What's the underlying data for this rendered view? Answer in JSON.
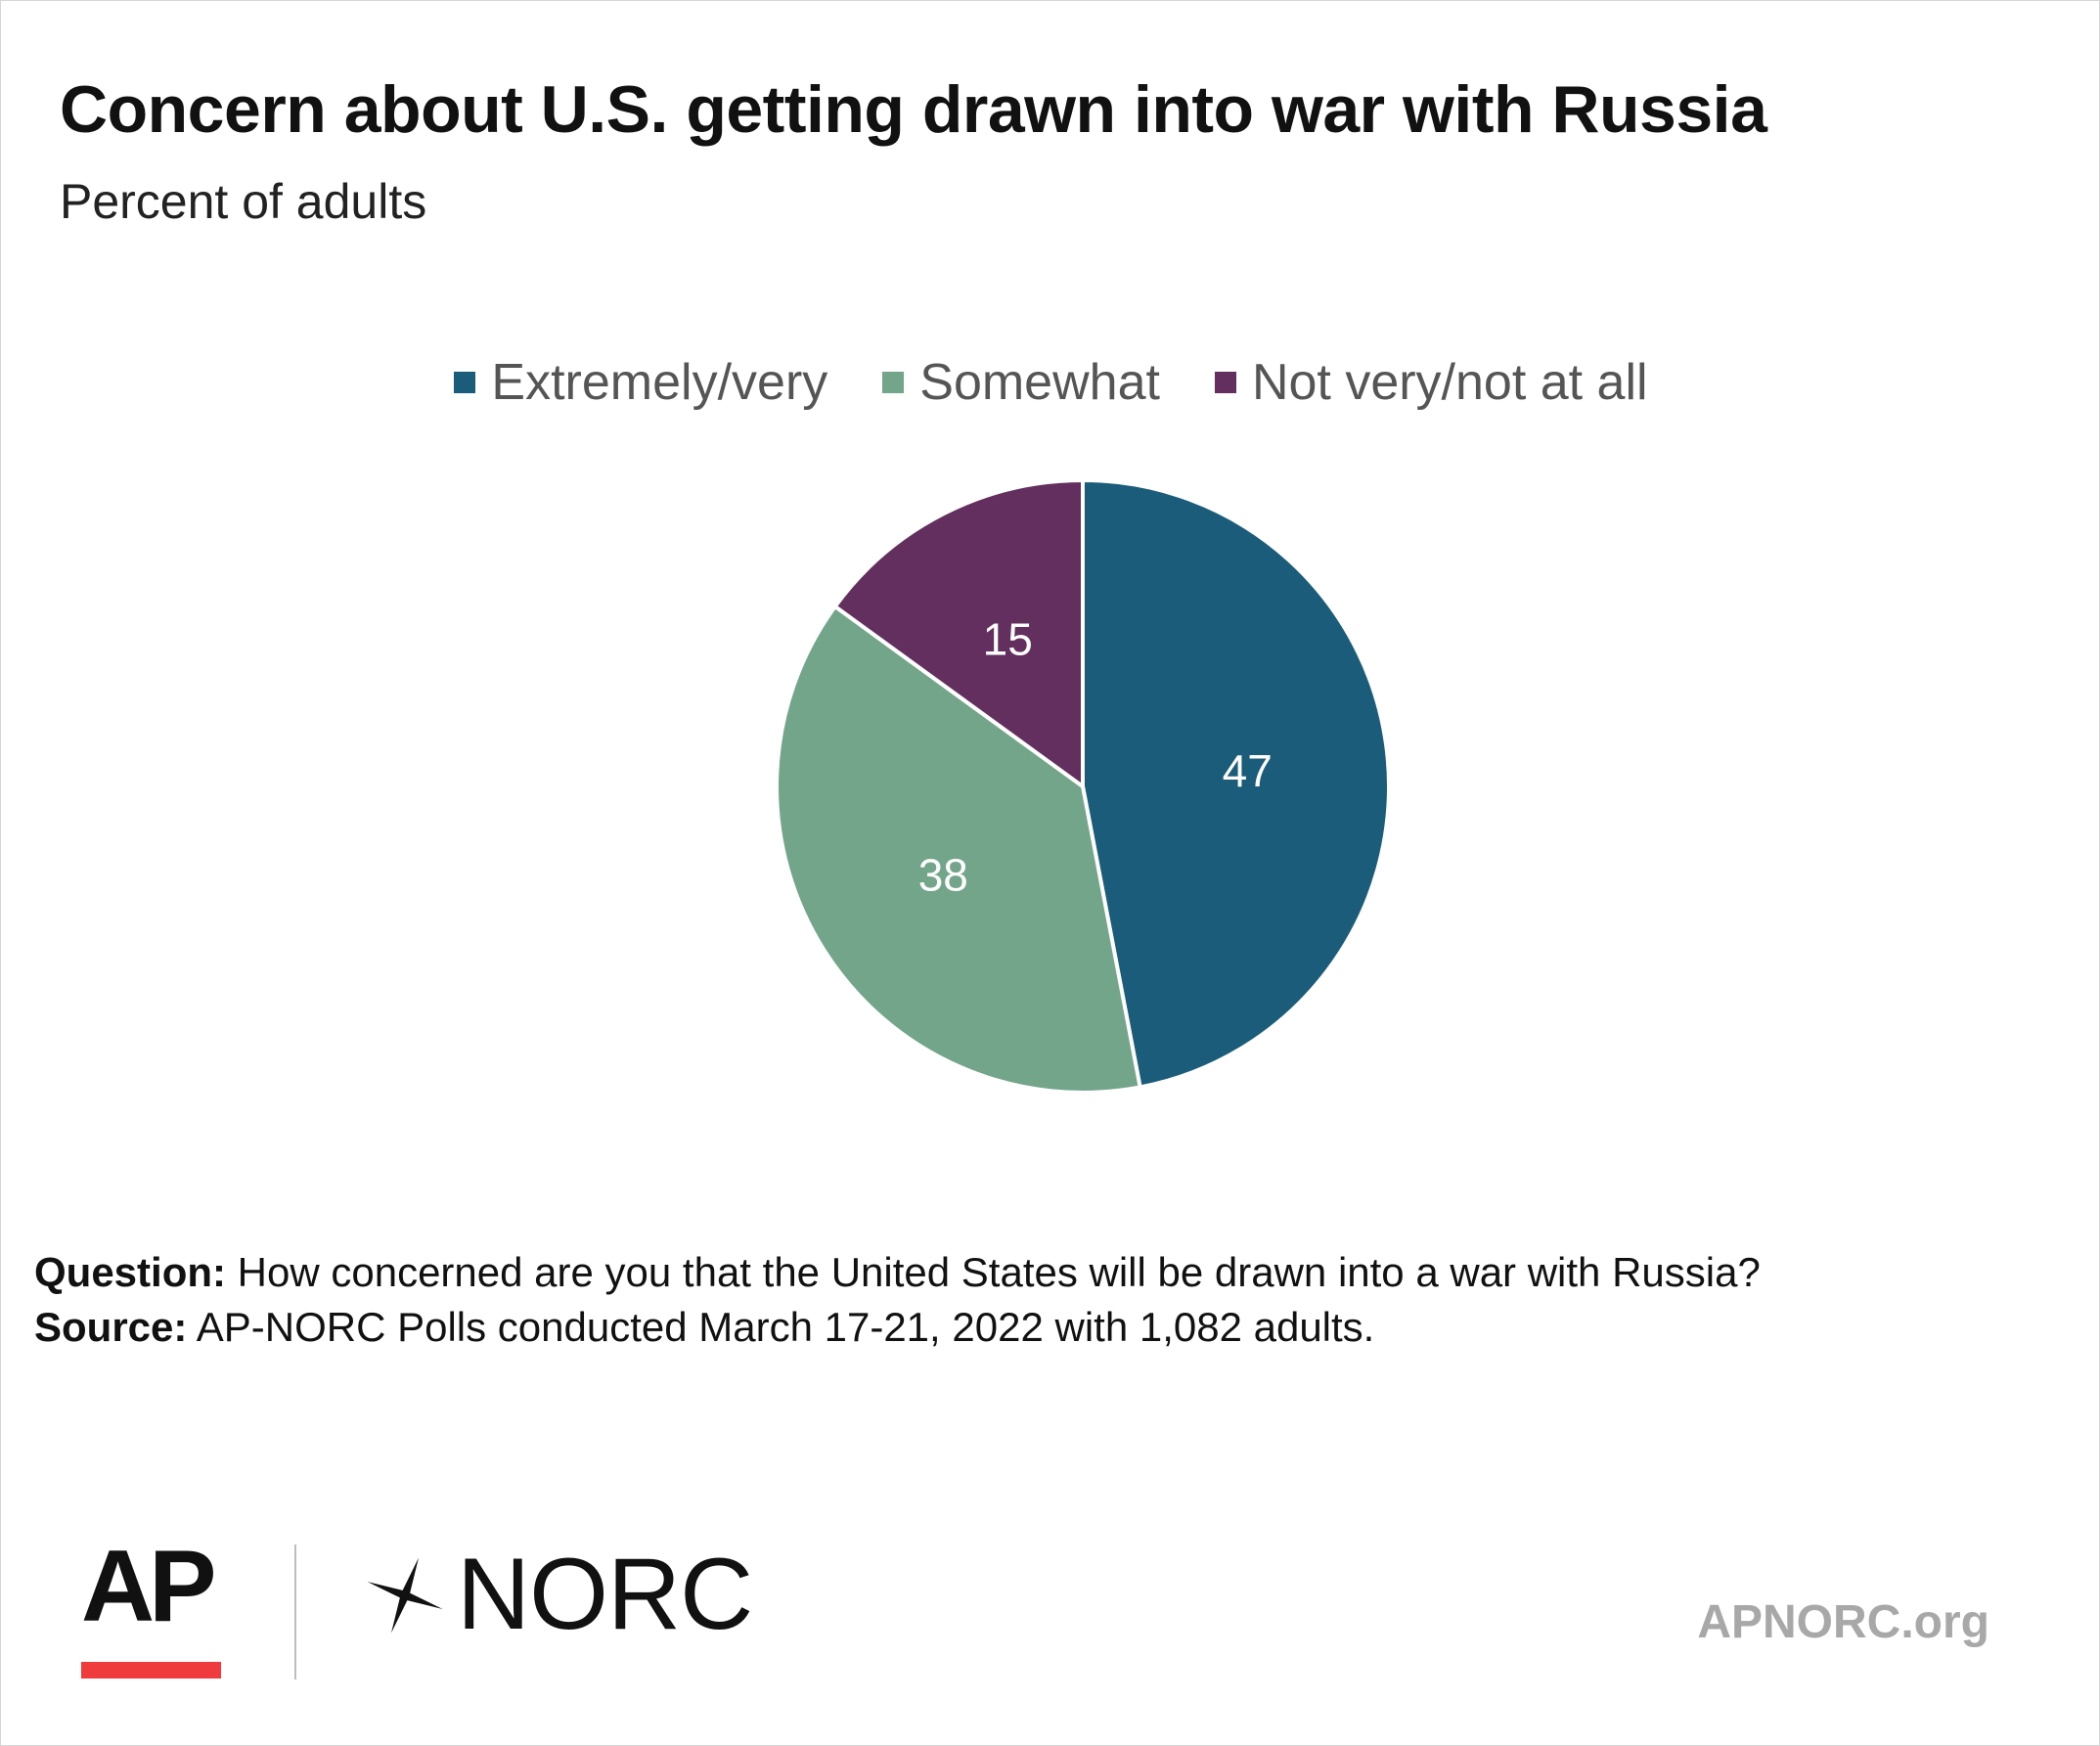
{
  "chart_data": {
    "type": "pie",
    "title": "Concern about U.S. getting drawn into war with Russia",
    "subtitle": "Percent of adults",
    "legend_position": "top-center",
    "slices": [
      {
        "name": "Extremely/very",
        "value": 47,
        "label": "47",
        "color": "#1a5c7a"
      },
      {
        "name": "Somewhat",
        "value": 38,
        "label": "38",
        "color": "#73a58a"
      },
      {
        "name": "Not very/not at all",
        "value": 15,
        "label": "15",
        "color": "#632f5e"
      }
    ],
    "slice_border_color": "#ffffff",
    "label_color": "#ffffff"
  },
  "notes": {
    "question_label": "Question:",
    "question_text": " How concerned are you that the United States will be drawn into a war with Russia?",
    "source_label": "Source:",
    "source_text": " AP-NORC Polls conducted March 17-21, 2022 with 1,082 adults."
  },
  "footer": {
    "ap_logo_text": "AP",
    "norc_logo_text": "NORC",
    "site_url": "APNORC.org",
    "ap_accent_color": "#ef3b3b"
  }
}
